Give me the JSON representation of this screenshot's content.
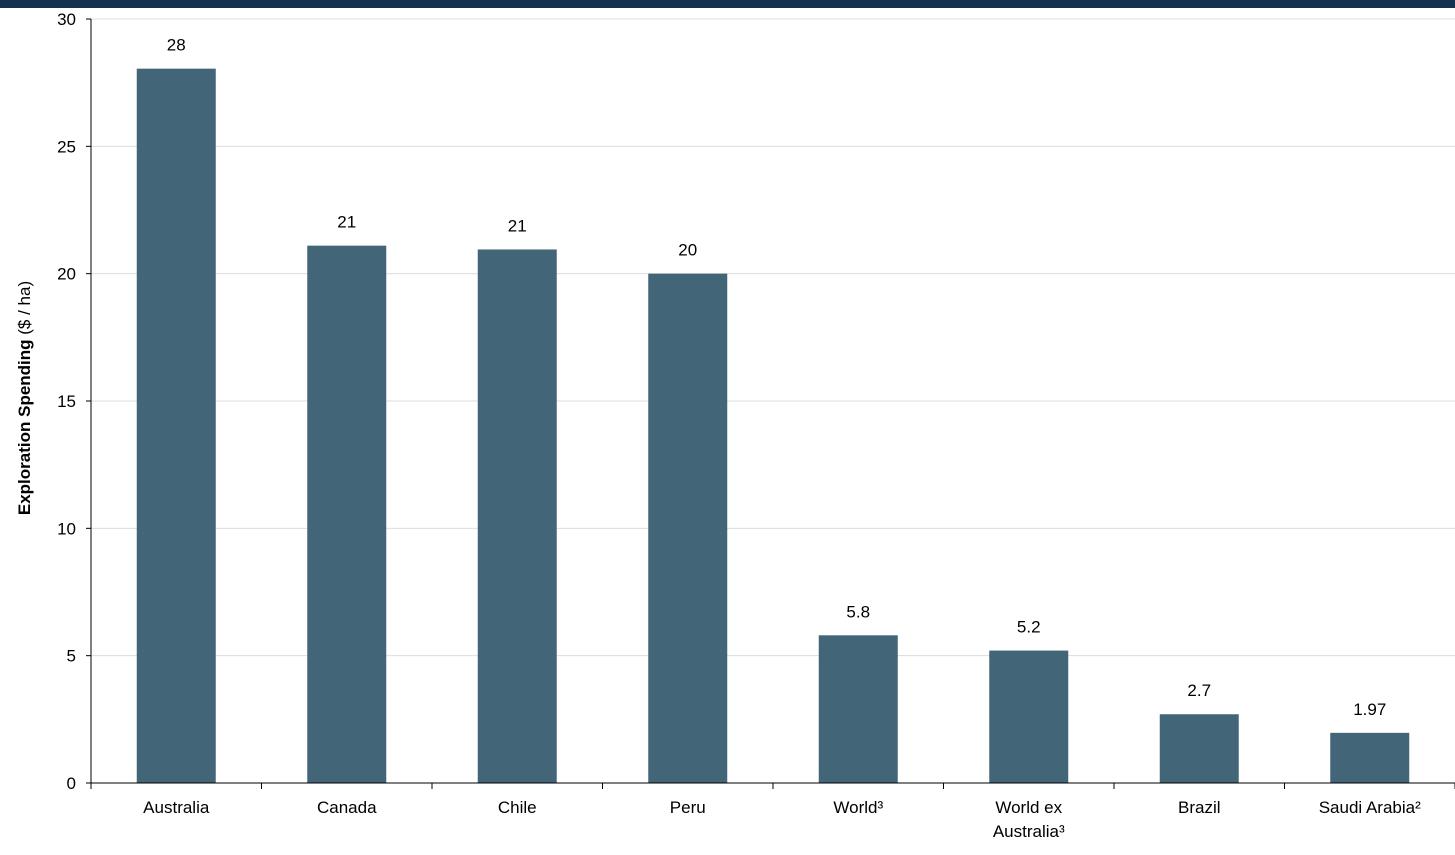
{
  "chart_data": {
    "type": "bar",
    "categories": [
      "Australia",
      "Canada",
      "Chile",
      "Peru",
      "World³",
      "World ex Australia³",
      "Brazil",
      "Saudi Arabia²"
    ],
    "category_lines": [
      [
        "Australia"
      ],
      [
        "Canada"
      ],
      [
        "Chile"
      ],
      [
        "Peru"
      ],
      [
        "World³"
      ],
      [
        "World ex",
        "Australia³"
      ],
      [
        "Brazil"
      ],
      [
        "Saudi Arabia²"
      ]
    ],
    "values": [
      28.05,
      21.1,
      20.95,
      20.0,
      5.8,
      5.2,
      2.7,
      1.97
    ],
    "data_labels": [
      "28",
      "21",
      "21",
      "20",
      "5.8",
      "5.2",
      "2.7",
      "1.97"
    ],
    "ylabel_bold": "Exploration Spending",
    "ylabel_unit": " ($ / ha)",
    "ylim": [
      0,
      30
    ],
    "yticks": [
      0,
      5,
      10,
      15,
      20,
      25,
      30
    ],
    "grid": true,
    "bar_color": "#426578",
    "header_band_color": "#12324f"
  }
}
